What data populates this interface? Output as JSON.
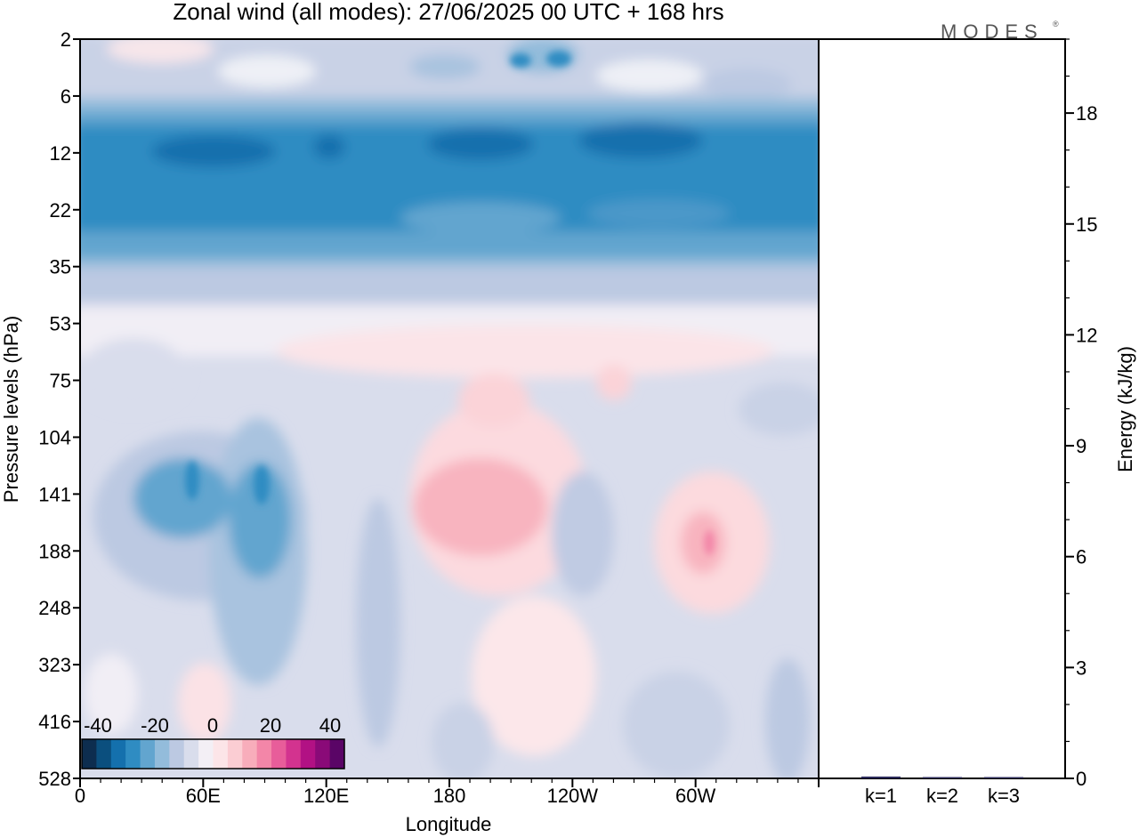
{
  "title": "Zonal wind (all modes):  27/06/2025  00 UTC  + 168 hrs",
  "logo": "MODES",
  "logo_mark": "®",
  "chart_data": [
    {
      "type": "heatmap",
      "title": "Zonal wind (all modes):  27/06/2025  00 UTC  + 168 hrs",
      "xlabel": "Longitude",
      "ylabel": "Pressure levels (hPa)",
      "x_ticks": [
        "0",
        "60E",
        "120E",
        "180",
        "120W",
        "60W"
      ],
      "x_tick_degrees": [
        0,
        60,
        120,
        180,
        240,
        300
      ],
      "x_range_degrees": [
        0,
        360
      ],
      "y_levels": [
        "2",
        "6",
        "12",
        "22",
        "35",
        "53",
        "75",
        "104",
        "141",
        "188",
        "248",
        "323",
        "416",
        "528"
      ],
      "colorbar": {
        "ticks": [
          "-40",
          "-20",
          "0",
          "20",
          "40"
        ],
        "colors": [
          "#0d2d4f",
          "#0b4f7e",
          "#1470ad",
          "#2f8cc2",
          "#62a5cf",
          "#93bcdb",
          "#bcc9e2",
          "#d9ddec",
          "#f3eff5",
          "#fce5e8",
          "#fbcdd3",
          "#f8adbb",
          "#f386a8",
          "#e85d9a",
          "#d3338f",
          "#b21184",
          "#8a0a78",
          "#5a0566"
        ]
      },
      "grid": false
    },
    {
      "type": "bar",
      "ylabel": "Energy (kJ/kg)",
      "categories": [
        "k=1",
        "k=2",
        "k=3"
      ],
      "values": [
        0.05,
        0.03,
        0.02
      ],
      "y_ticks": [
        "0",
        "3",
        "6",
        "9",
        "12",
        "15",
        "18"
      ],
      "ylim": [
        0,
        20
      ]
    }
  ]
}
